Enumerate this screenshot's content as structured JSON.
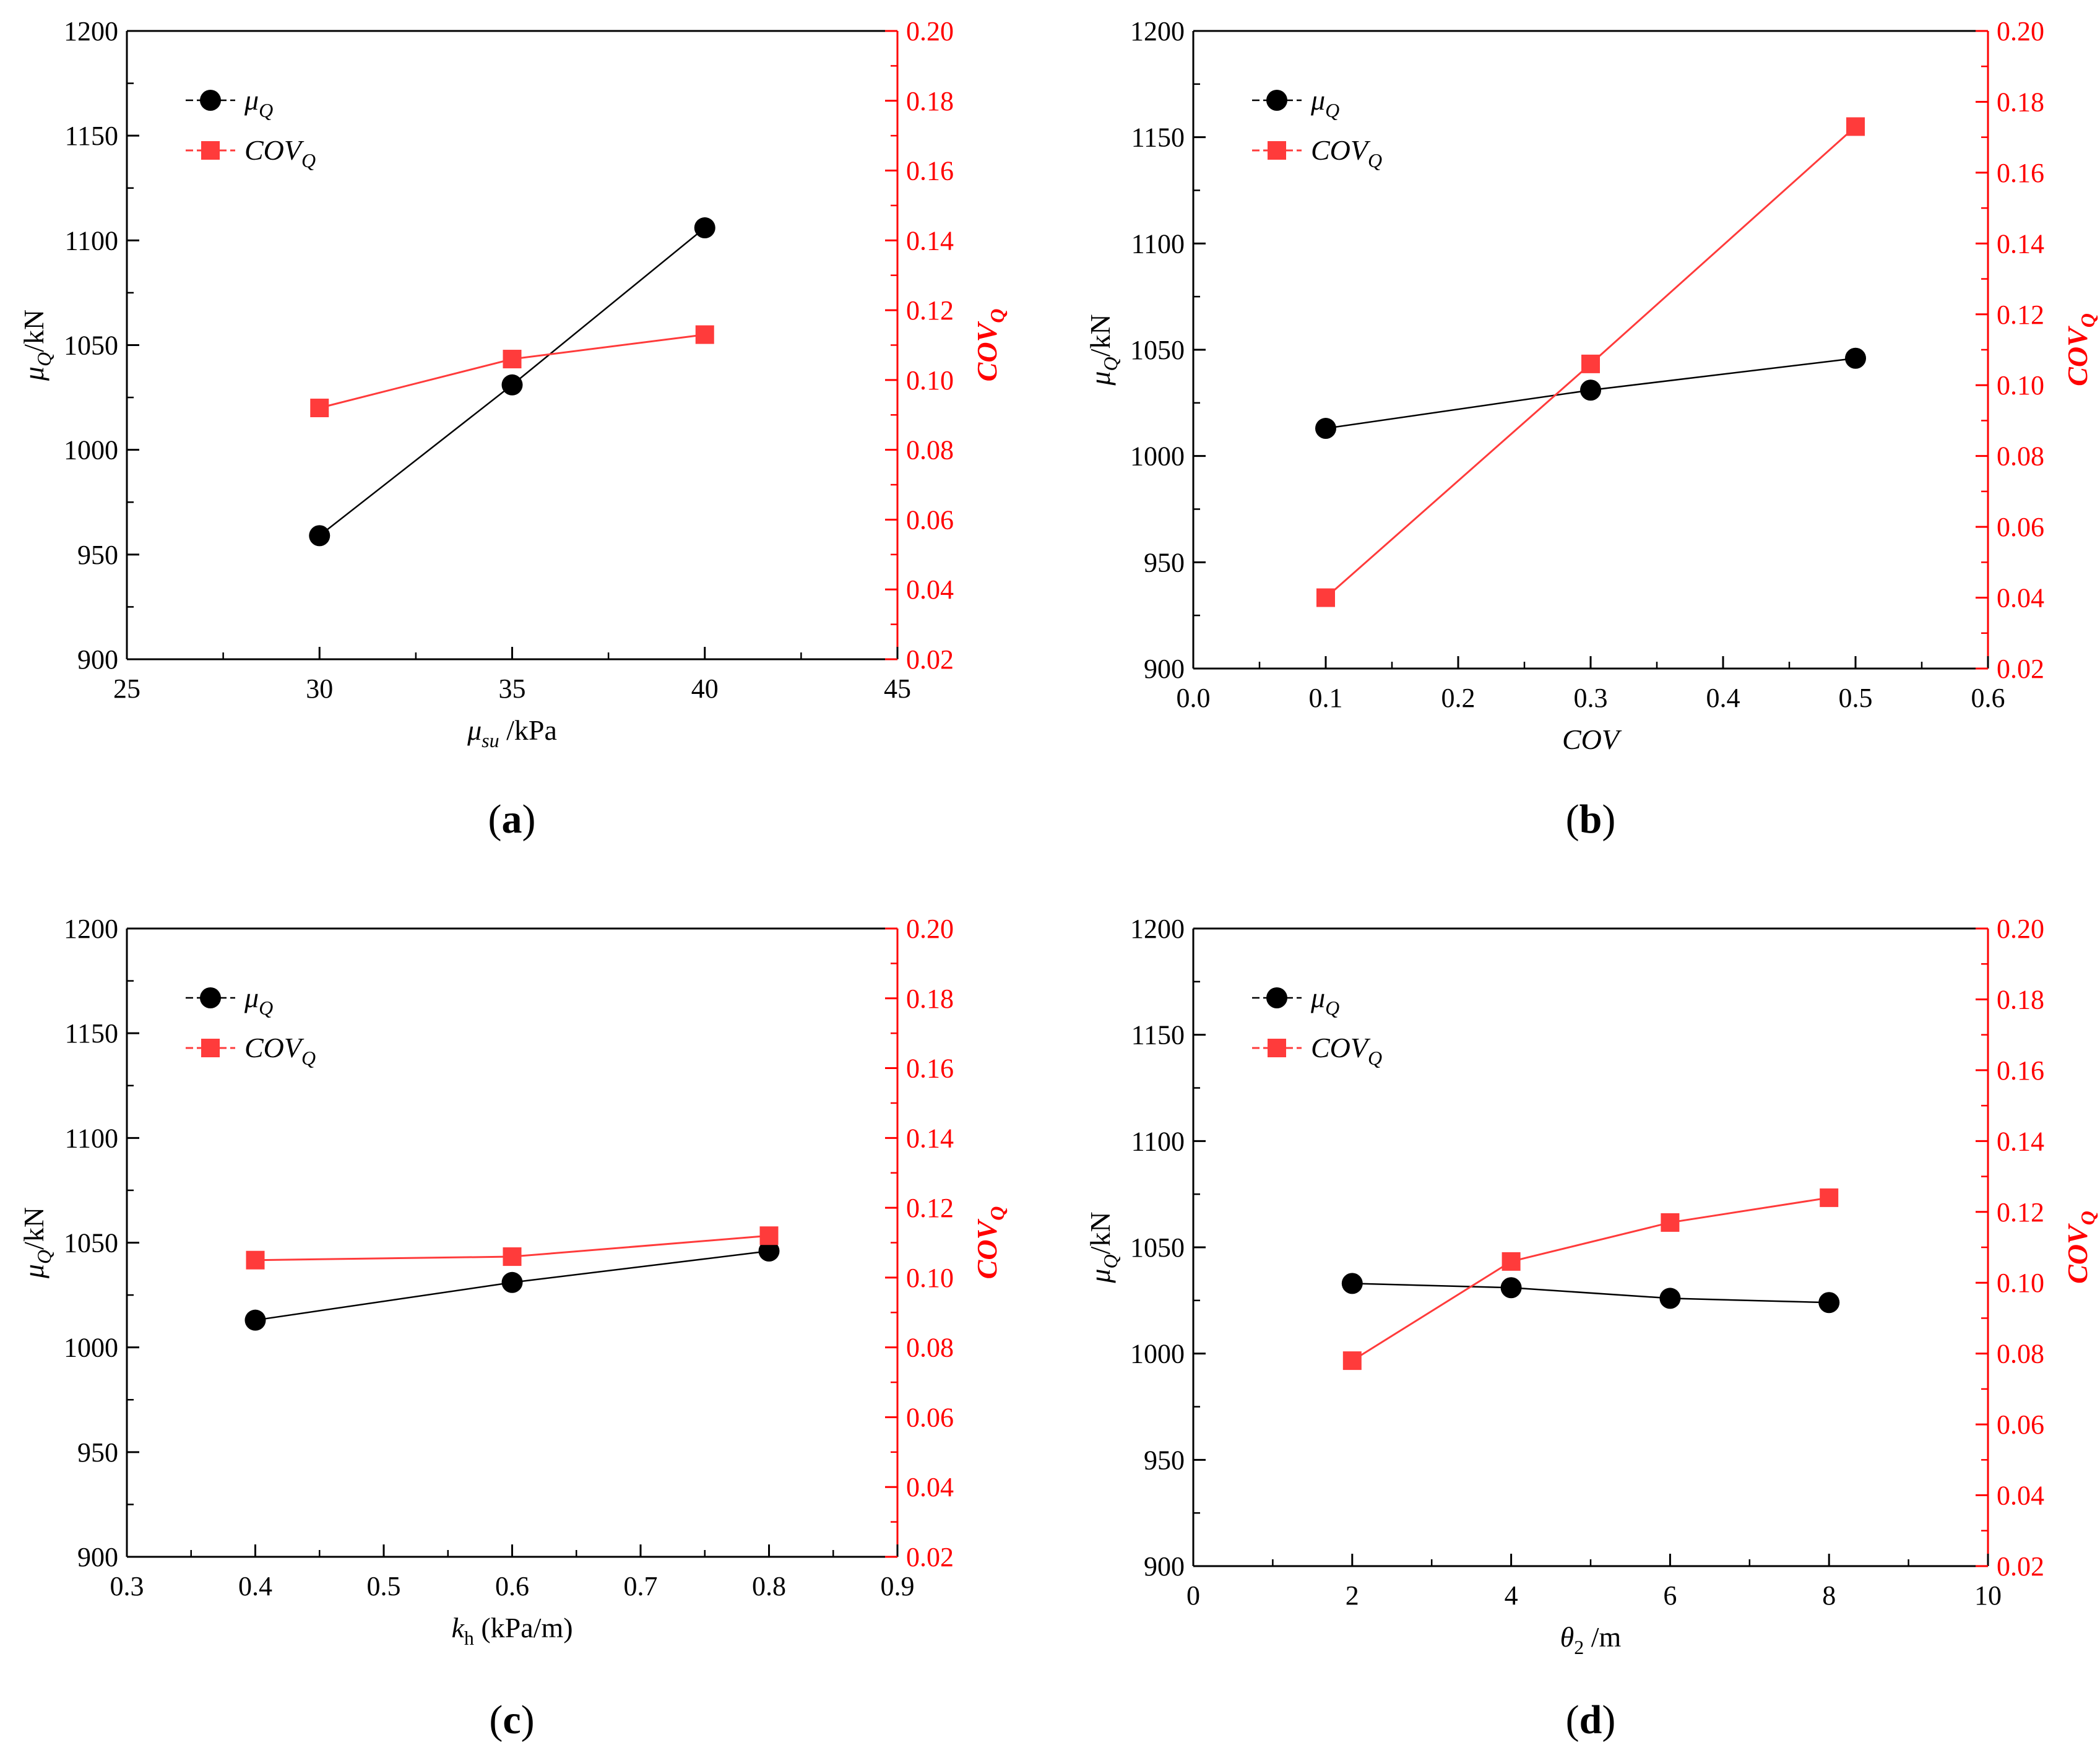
{
  "colors": {
    "left_series": "#000000",
    "right_series": "#ff3b3b",
    "right_axis": "#ff0000"
  },
  "legend": {
    "mu_label": "μ",
    "mu_sub": "Q",
    "cov_label": "COV",
    "cov_sub": "Q"
  },
  "left_axis_label": {
    "main": "μ",
    "sub": "Q",
    "tail": "/kN"
  },
  "right_axis_label": {
    "main": "COV",
    "sub": "Q"
  },
  "chart_data": [
    {
      "panel_label": "a",
      "type": "line",
      "xlabel": {
        "main": "μ",
        "sub": "su",
        "tail": " /kPa",
        "main_italic": true
      },
      "xlim": [
        25,
        45
      ],
      "xticks": [
        "25",
        "30",
        "35",
        "40",
        "45"
      ],
      "ylim": [
        900,
        1200
      ],
      "yticks": [
        "900",
        "950",
        "1000",
        "1050",
        "1100",
        "1150",
        "1200"
      ],
      "y2lim": [
        0.02,
        0.2
      ],
      "y2ticks": [
        "0.02",
        "0.04",
        "0.06",
        "0.08",
        "0.10",
        "0.12",
        "0.14",
        "0.16",
        "0.18",
        "0.20"
      ],
      "series": [
        {
          "name": "μQ",
          "axis": "left",
          "x": [
            30,
            35,
            40
          ],
          "values": [
            959,
            1031,
            1106
          ]
        },
        {
          "name": "COVQ",
          "axis": "right",
          "x": [
            30,
            35,
            40
          ],
          "values": [
            0.092,
            0.106,
            0.113
          ]
        }
      ]
    },
    {
      "panel_label": "b",
      "type": "line",
      "xlabel": {
        "main": "COV",
        "sub": "",
        "tail": "",
        "main_italic": true
      },
      "xlim": [
        0.0,
        0.6
      ],
      "xticks": [
        "0.0",
        "0.1",
        "0.2",
        "0.3",
        "0.4",
        "0.5",
        "0.6"
      ],
      "ylim": [
        900,
        1200
      ],
      "yticks": [
        "900",
        "950",
        "1000",
        "1050",
        "1100",
        "1150",
        "1200"
      ],
      "y2lim": [
        0.02,
        0.2
      ],
      "y2ticks": [
        "0.02",
        "0.04",
        "0.06",
        "0.08",
        "0.10",
        "0.12",
        "0.14",
        "0.16",
        "0.18",
        "0.20"
      ],
      "series": [
        {
          "name": "μQ",
          "axis": "left",
          "x": [
            0.1,
            0.3,
            0.5
          ],
          "values": [
            1013,
            1031,
            1046
          ]
        },
        {
          "name": "COVQ",
          "axis": "right",
          "x": [
            0.1,
            0.3,
            0.5
          ],
          "values": [
            0.04,
            0.106,
            0.173
          ]
        }
      ]
    },
    {
      "panel_label": "c",
      "type": "line",
      "xlabel": {
        "main": "k",
        "sub": "h",
        "tail": " (kPa/m)",
        "main_italic": true
      },
      "xlim": [
        0.3,
        0.9
      ],
      "xticks": [
        "0.3",
        "0.4",
        "0.5",
        "0.6",
        "0.7",
        "0.8",
        "0.9"
      ],
      "ylim": [
        900,
        1200
      ],
      "yticks": [
        "900",
        "950",
        "1000",
        "1050",
        "1100",
        "1150",
        "1200"
      ],
      "y2lim": [
        0.02,
        0.2
      ],
      "y2ticks": [
        "0.02",
        "0.04",
        "0.06",
        "0.08",
        "0.10",
        "0.12",
        "0.14",
        "0.16",
        "0.18",
        "0.20"
      ],
      "series": [
        {
          "name": "μQ",
          "axis": "left",
          "x": [
            0.4,
            0.6,
            0.8
          ],
          "values": [
            1013,
            1031,
            1046
          ]
        },
        {
          "name": "COVQ",
          "axis": "right",
          "x": [
            0.4,
            0.6,
            0.8
          ],
          "values": [
            0.105,
            0.106,
            0.112
          ]
        }
      ]
    },
    {
      "panel_label": "d",
      "type": "line",
      "xlabel": {
        "main": "θ",
        "sub": "2",
        "tail": " /m",
        "main_italic": true
      },
      "xlim": [
        0,
        10
      ],
      "xticks": [
        "0",
        "2",
        "4",
        "6",
        "8",
        "10"
      ],
      "ylim": [
        900,
        1200
      ],
      "yticks": [
        "900",
        "950",
        "1000",
        "1050",
        "1100",
        "1150",
        "1200"
      ],
      "y2lim": [
        0.02,
        0.2
      ],
      "y2ticks": [
        "0.02",
        "0.04",
        "0.06",
        "0.08",
        "0.10",
        "0.12",
        "0.14",
        "0.16",
        "0.18",
        "0.20"
      ],
      "series": [
        {
          "name": "μQ",
          "axis": "left",
          "x": [
            2,
            4,
            6,
            8
          ],
          "values": [
            1033,
            1031,
            1026,
            1024
          ]
        },
        {
          "name": "COVQ",
          "axis": "right",
          "x": [
            2,
            4,
            6,
            8
          ],
          "values": [
            0.078,
            0.106,
            0.117,
            0.124
          ]
        }
      ]
    }
  ]
}
